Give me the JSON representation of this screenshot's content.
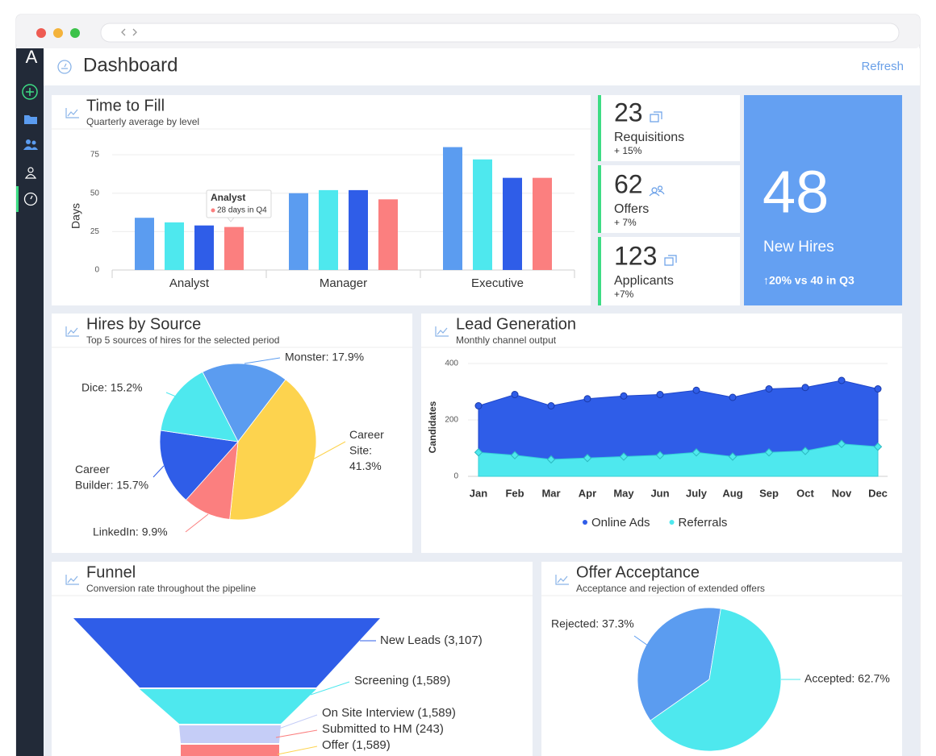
{
  "sidebar": {
    "logo": "A"
  },
  "header": {
    "title": "Dashboard",
    "action": "Refresh"
  },
  "kpis": [
    {
      "value": 23,
      "label": "Requisitions",
      "change": "+ 15%"
    },
    {
      "value": 62,
      "label": "Offers",
      "change": "+ 7%"
    },
    {
      "value": 123,
      "label": "Applicants",
      "change": "+7%"
    }
  ],
  "highlight": {
    "value": 48,
    "label": "New Hires",
    "change": "↑20% vs 40 in Q3"
  },
  "chart_data": [
    {
      "type": "bar",
      "title": "Time to Fill",
      "subtitle": "Quarterly average by level",
      "y_label": "Days",
      "categories": [
        "Analyst",
        "Manager",
        "Executive"
      ],
      "series": [
        {
          "color": "#5b9cf0",
          "values": [
            34,
            50,
            80
          ]
        },
        {
          "color": "#4ee8ee",
          "values": [
            31,
            52,
            72
          ]
        },
        {
          "color": "#2f5de8",
          "values": [
            29,
            52,
            60
          ]
        },
        {
          "color": "#fb7f7f",
          "values": [
            28,
            46,
            60
          ]
        }
      ],
      "ylim": [
        0,
        85
      ],
      "yticks": [
        0,
        25,
        50,
        75
      ],
      "grid": true,
      "tooltip": {
        "title": "Analyst",
        "text": "28 days in Q4"
      }
    },
    {
      "type": "pie",
      "title": "Hires by Source",
      "subtitle": "Top 5 sources of hires for the selected period",
      "labels": [
        "Monster: 17.9%",
        "Career Site: 41.3%",
        "LinkedIn: 9.9%",
        "Career Builder: 15.7%",
        "Dice: 15.2%"
      ],
      "values": [
        17.9,
        41.3,
        9.9,
        15.7,
        15.2
      ],
      "colors": [
        "#5b9cf0",
        "#fdd34e",
        "#fb7f7f",
        "#2f5de8",
        "#4ee8ee"
      ]
    },
    {
      "type": "area",
      "title": "Lead Generation",
      "subtitle": "Monthly channel output",
      "y_label": "Candidates",
      "categories": [
        "Jan",
        "Feb",
        "Mar",
        "Apr",
        "May",
        "Jun",
        "July",
        "Aug",
        "Sep",
        "Oct",
        "Nov",
        "Dec"
      ],
      "series": [
        {
          "name": "Online Ads",
          "color": "#2f5de8",
          "values": [
            250,
            290,
            250,
            275,
            285,
            290,
            305,
            280,
            310,
            315,
            340,
            310
          ]
        },
        {
          "name": "Referrals",
          "color": "#4ee8ee",
          "values": [
            85,
            75,
            60,
            65,
            70,
            75,
            85,
            70,
            85,
            90,
            115,
            105
          ]
        }
      ],
      "ylim": [
        0,
        400
      ],
      "yticks": [
        0,
        200,
        400
      ],
      "grid": true,
      "legend": "bottom"
    },
    {
      "type": "funnel",
      "title": "Funnel",
      "subtitle": "Conversion rate throughout the pipeline",
      "labels": [
        "New Leads (3,107)",
        "Screening (1,589)",
        "On Site Interview (1,589)",
        "Submitted to HM (243)",
        "Offer (1,589)"
      ],
      "values": [
        3107,
        1589,
        1589,
        243,
        1589
      ],
      "colors": [
        "#2f5de8",
        "#4ee8ee",
        "#c5cdf7",
        "#fb7f7f",
        "#fdd34e"
      ]
    },
    {
      "type": "pie",
      "title": "Offer Acceptance",
      "subtitle": "Acceptance and rejection of extended offers",
      "labels": [
        "Rejected: 37.3%",
        "Accepted: 62.7%"
      ],
      "values": [
        37.3,
        62.7
      ],
      "colors": [
        "#5b9cf0",
        "#4ee8ee"
      ]
    }
  ]
}
